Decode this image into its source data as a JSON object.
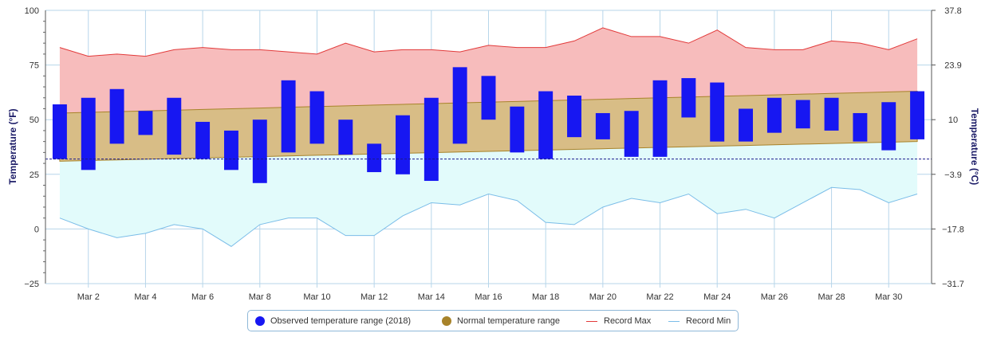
{
  "colors": {
    "observed": "#1717f2",
    "normal": "#a8832a",
    "normal_fill": "#d8bd86",
    "record_max": "#e23a3a",
    "record_max_fill": "#f7bcbc",
    "record_min": "#7bbde8",
    "record_min_fill": "#e2fbfb",
    "grid": "#b7d6ea",
    "freezing_line": "#1a1a8c"
  },
  "legend": {
    "observed": "Observed temperature range (2018)",
    "normal": "Normal temperature range",
    "record_max": "Record Max",
    "record_min": "Record Min"
  },
  "chart_data": {
    "type": "bar",
    "ylabel": "Temperature (°F)",
    "y2label": "Temperature (°C)",
    "ylim": [
      -25,
      100
    ],
    "yticks": [
      -25,
      0,
      25,
      50,
      75,
      100
    ],
    "y2ticks": [
      -31.7,
      -17.8,
      -3.9,
      10,
      23.9,
      37.8
    ],
    "grid": true,
    "legend_position": "bottom-center",
    "freezing_line": 32,
    "x_tick_labels": [
      "Mar 2",
      "Mar 4",
      "Mar 6",
      "Mar 8",
      "Mar 10",
      "Mar 12",
      "Mar 14",
      "Mar 16",
      "Mar 18",
      "Mar 20",
      "Mar 22",
      "Mar 24",
      "Mar 26",
      "Mar 28",
      "Mar 30"
    ],
    "days": [
      1,
      2,
      3,
      4,
      5,
      6,
      7,
      8,
      9,
      10,
      11,
      12,
      13,
      14,
      15,
      16,
      17,
      18,
      19,
      20,
      21,
      22,
      23,
      24,
      25,
      26,
      27,
      28,
      29,
      30,
      31
    ],
    "series": [
      {
        "name": "Observed temperature range (2018)",
        "kind": "range_bar",
        "low": [
          32,
          27,
          39,
          43,
          34,
          32,
          27,
          21,
          35,
          39,
          34,
          26,
          25,
          22,
          39,
          50,
          35,
          32,
          42,
          41,
          33,
          33,
          51,
          40,
          40,
          44,
          46,
          45,
          40,
          36,
          41
        ],
        "high": [
          57,
          60,
          64,
          54,
          60,
          49,
          45,
          50,
          68,
          63,
          50,
          39,
          52,
          60,
          74,
          70,
          56,
          63,
          61,
          53,
          54,
          68,
          69,
          67,
          55,
          60,
          59,
          60,
          53,
          58,
          63
        ]
      },
      {
        "name": "Normal temperature range",
        "kind": "range_area",
        "low": [
          31,
          31.3,
          31.6,
          31.9,
          32.2,
          32.5,
          32.8,
          33.1,
          33.4,
          33.7,
          34,
          34.3,
          34.6,
          34.9,
          35.2,
          35.5,
          35.8,
          36.1,
          36.4,
          36.7,
          37,
          37.3,
          37.6,
          37.9,
          38.2,
          38.5,
          38.8,
          39.1,
          39.4,
          39.7,
          40
        ],
        "high": [
          53,
          53.33,
          53.67,
          54,
          54.33,
          54.67,
          55,
          55.33,
          55.67,
          56,
          56.33,
          56.67,
          57,
          57.33,
          57.67,
          58,
          58.33,
          58.67,
          59,
          59.33,
          59.67,
          60,
          60.33,
          60.67,
          61,
          61.33,
          61.67,
          62,
          62.33,
          62.67,
          63
        ]
      },
      {
        "name": "Record Max",
        "kind": "line",
        "values": [
          83,
          79,
          80,
          79,
          82,
          83,
          82,
          82,
          81,
          80,
          85,
          81,
          82,
          82,
          81,
          84,
          83,
          83,
          86,
          92,
          88,
          88,
          85,
          91,
          83,
          82,
          82,
          86,
          85,
          82,
          87
        ]
      },
      {
        "name": "Record Min",
        "kind": "line",
        "values": [
          5,
          0,
          -4,
          -2,
          2,
          0,
          -8,
          2,
          5,
          5,
          -3,
          -3,
          6,
          12,
          11,
          16,
          13,
          3,
          2,
          10,
          14,
          12,
          16,
          7,
          9,
          5,
          12,
          19,
          18,
          12,
          16
        ]
      }
    ]
  }
}
